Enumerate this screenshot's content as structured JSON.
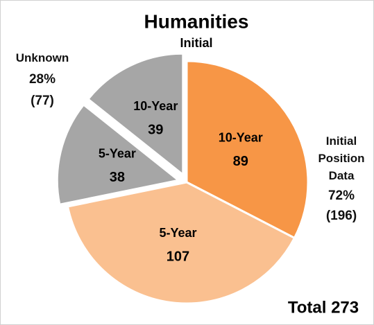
{
  "chart_data": {
    "type": "pie",
    "title": "Humanities",
    "subtitle": "Initial",
    "categories": [
      "10-Year",
      "5-Year",
      "5-Year",
      "10-Year"
    ],
    "values": [
      89,
      107,
      38,
      39
    ],
    "colors": [
      "#f79646",
      "#fac090",
      "#a6a6a6",
      "#a6a6a6"
    ],
    "exploded": [
      false,
      false,
      true,
      true
    ],
    "groups": [
      {
        "name": "Initial Position Data",
        "share": 72,
        "share_label": "72%",
        "value": 196,
        "value_label": "(196)"
      },
      {
        "name": "Unknown",
        "share": 28,
        "share_label": "28%",
        "value": 77,
        "value_label": "(77)"
      }
    ],
    "total_label": "Total 273"
  }
}
